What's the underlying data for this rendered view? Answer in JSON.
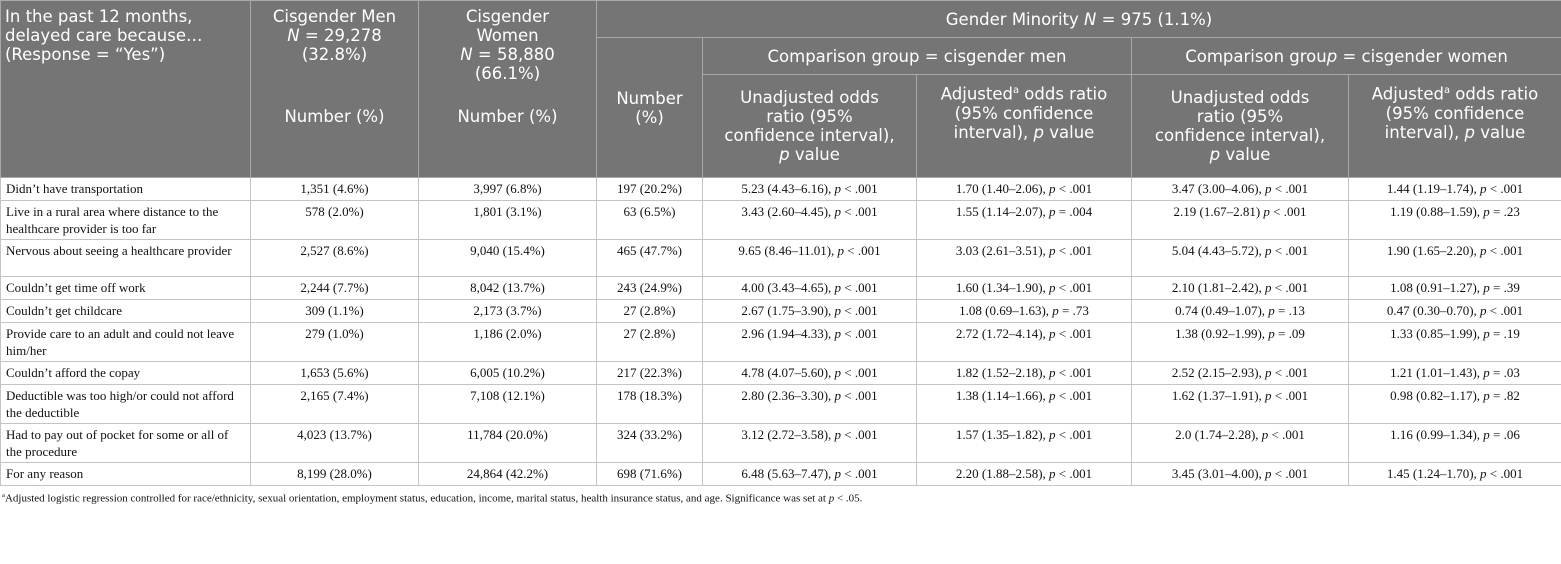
{
  "header": {
    "col_label": [
      "In the past 12 months,",
      "delayed care because…",
      "(Response = “Yes”)"
    ],
    "men": {
      "title": "Cisgender Men",
      "n": "N = 29,278",
      "pct": "(32.8%)",
      "sub": "Number (%)"
    },
    "women": {
      "title1": "Cisgender",
      "title2": "Women",
      "n": "N = 58,880",
      "pct": "(66.1%)",
      "sub": "Number (%)"
    },
    "gm": {
      "pre": "Gender Minority ",
      "n": "N",
      "post": " = 975 (1.1%)"
    },
    "gm_number": [
      "Number",
      "(%)"
    ],
    "comp_men": "Comparison group = cisgender men",
    "comp_women_pre": "Comparison grou",
    "comp_women_p": "p",
    "comp_women_post": " = cisgender women",
    "unadj_men": [
      "Unadjusted odds",
      "ratio (95%",
      "confidence interval),",
      "p",
      " value"
    ],
    "adj": [
      "Adjusted",
      "a",
      " odds ratio",
      "(95% confidence",
      "interval), ",
      "p",
      " value"
    ],
    "unadj_women": [
      "Unadjusted odds",
      "ratio (95%",
      "confidence interval),",
      "p",
      " value"
    ]
  },
  "rows": [
    {
      "label": "Didn’t have transportation",
      "men": "1,351 (4.6%)",
      "women": "3,997 (6.8%)",
      "gm": "197 (20.2%)",
      "um": [
        "5.23 (4.43–6.16), ",
        "< .001"
      ],
      "am": [
        "1.70 (1.40–2.06), ",
        "< .001"
      ],
      "uw": [
        "3.47 (3.00–4.06), ",
        "< .001"
      ],
      "aw": [
        "1.44 (1.19–1.74), ",
        "< .001"
      ]
    },
    {
      "label": "Live in a rural area where distance to the healthcare provider is too far",
      "men": "578 (2.0%)",
      "women": "1,801 (3.1%)",
      "gm": "63 (6.5%)",
      "um": [
        "3.43 (2.60–4.45), ",
        "< .001"
      ],
      "am": [
        "1.55 (1.14–2.07), ",
        "= .004"
      ],
      "uw": [
        "2.19 (1.67–2.81) ",
        "< .001"
      ],
      "aw": [
        "1.19 (0.88–1.59), ",
        "= .23"
      ]
    },
    {
      "label": "Nervous about seeing a healthcare provider",
      "men": "2,527 (8.6%)",
      "women": "9,040 (15.4%)",
      "gm": "465 (47.7%)",
      "um": [
        "9.65 (8.46–11.01), ",
        "< .001"
      ],
      "am": [
        "3.03 (2.61–3.51), ",
        "< .001"
      ],
      "uw": [
        "5.04 (4.43–5.72), ",
        "< .001"
      ],
      "aw": [
        "1.90 (1.65–2.20), ",
        "< .001"
      ]
    },
    {
      "label": "Couldn’t get time off work",
      "men": "2,244 (7.7%)",
      "women": "8,042 (13.7%)",
      "gm": "243 (24.9%)",
      "um": [
        "4.00 (3.43–4.65), ",
        "< .001"
      ],
      "am": [
        "1.60 (1.34–1.90), ",
        "< .001"
      ],
      "uw": [
        "2.10 (1.81–2.42), ",
        "< .001"
      ],
      "aw": [
        "1.08 (0.91–1.27), ",
        "= .39"
      ]
    },
    {
      "label": "Couldn’t get childcare",
      "men": "309 (1.1%)",
      "women": "2,173 (3.7%)",
      "gm": "27 (2.8%)",
      "um": [
        "2.67 (1.75–3.90), ",
        "< .001"
      ],
      "am": [
        "1.08 (0.69–1.63), ",
        "= .73"
      ],
      "uw": [
        "0.74 (0.49–1.07), ",
        "= .13"
      ],
      "aw": [
        "0.47 (0.30–0.70), ",
        "< .001"
      ]
    },
    {
      "label": "Provide care to an adult and could not leave him/her",
      "men": "279 (1.0%)",
      "women": "1,186 (2.0%)",
      "gm": "27 (2.8%)",
      "um": [
        "2.96 (1.94–4.33), ",
        "< .001"
      ],
      "am": [
        "2.72 (1.72–4.14), ",
        "< .001"
      ],
      "uw": [
        "1.38 (0.92–1.99), ",
        "= .09"
      ],
      "aw": [
        "1.33 (0.85–1.99), ",
        "= .19"
      ]
    },
    {
      "label": "Couldn’t afford the copay",
      "men": "1,653 (5.6%)",
      "women": "6,005 (10.2%)",
      "gm": "217 (22.3%)",
      "um": [
        "4.78 (4.07–5.60), ",
        "< .001"
      ],
      "am": [
        "1.82 (1.52–2.18), ",
        "< .001"
      ],
      "uw": [
        "2.52 (2.15–2.93), ",
        "< .001"
      ],
      "aw": [
        "1.21 (1.01–1.43), ",
        "= .03"
      ]
    },
    {
      "label": "Deductible was too high/or could not afford the deductible",
      "men": "2,165 (7.4%)",
      "women": "7,108 (12.1%)",
      "gm": "178 (18.3%)",
      "um": [
        "2.80 (2.36–3.30), ",
        "< .001"
      ],
      "am": [
        "1.38 (1.14–1.66), ",
        "< .001"
      ],
      "uw": [
        "1.62 (1.37–1.91), ",
        "< .001"
      ],
      "aw": [
        "0.98 (0.82–1.17), ",
        "= .82"
      ]
    },
    {
      "label": "Had to pay out of pocket for some or all of the procedure",
      "men": "4,023 (13.7%)",
      "women": "11,784 (20.0%)",
      "gm": "324 (33.2%)",
      "um": [
        "3.12 (2.72–3.58), ",
        "< .001"
      ],
      "am": [
        "1.57 (1.35–1.82), ",
        "< .001"
      ],
      "uw": [
        "2.0 (1.74–2.28), ",
        "< .001"
      ],
      "aw": [
        "1.16 (0.99–1.34), ",
        "= .06"
      ]
    },
    {
      "label": "For any reason",
      "men": "8,199 (28.0%)",
      "women": "24,864 (42.2%)",
      "gm": "698 (71.6%)",
      "um": [
        "6.48 (5.63–7.47), ",
        "< .001"
      ],
      "am": [
        "2.20 (1.88–2.58), ",
        "< .001"
      ],
      "uw": [
        "3.45 (3.01–4.00), ",
        "< .001"
      ],
      "aw": [
        "1.45 (1.24–1.70), ",
        "< .001"
      ]
    }
  ],
  "p_letter": "p",
  "footnote": {
    "mark": "a",
    "text": "Adjusted logistic regression controlled for race/ethnicity, sexual orientation, employment status, education, income, marital status, health insurance status, and age. Significance was set at ",
    "p": "p",
    "post": " < .05."
  },
  "colors": {
    "header_bg": "#757575",
    "header_text": "#ffffff",
    "border": "#c4c4c4"
  }
}
